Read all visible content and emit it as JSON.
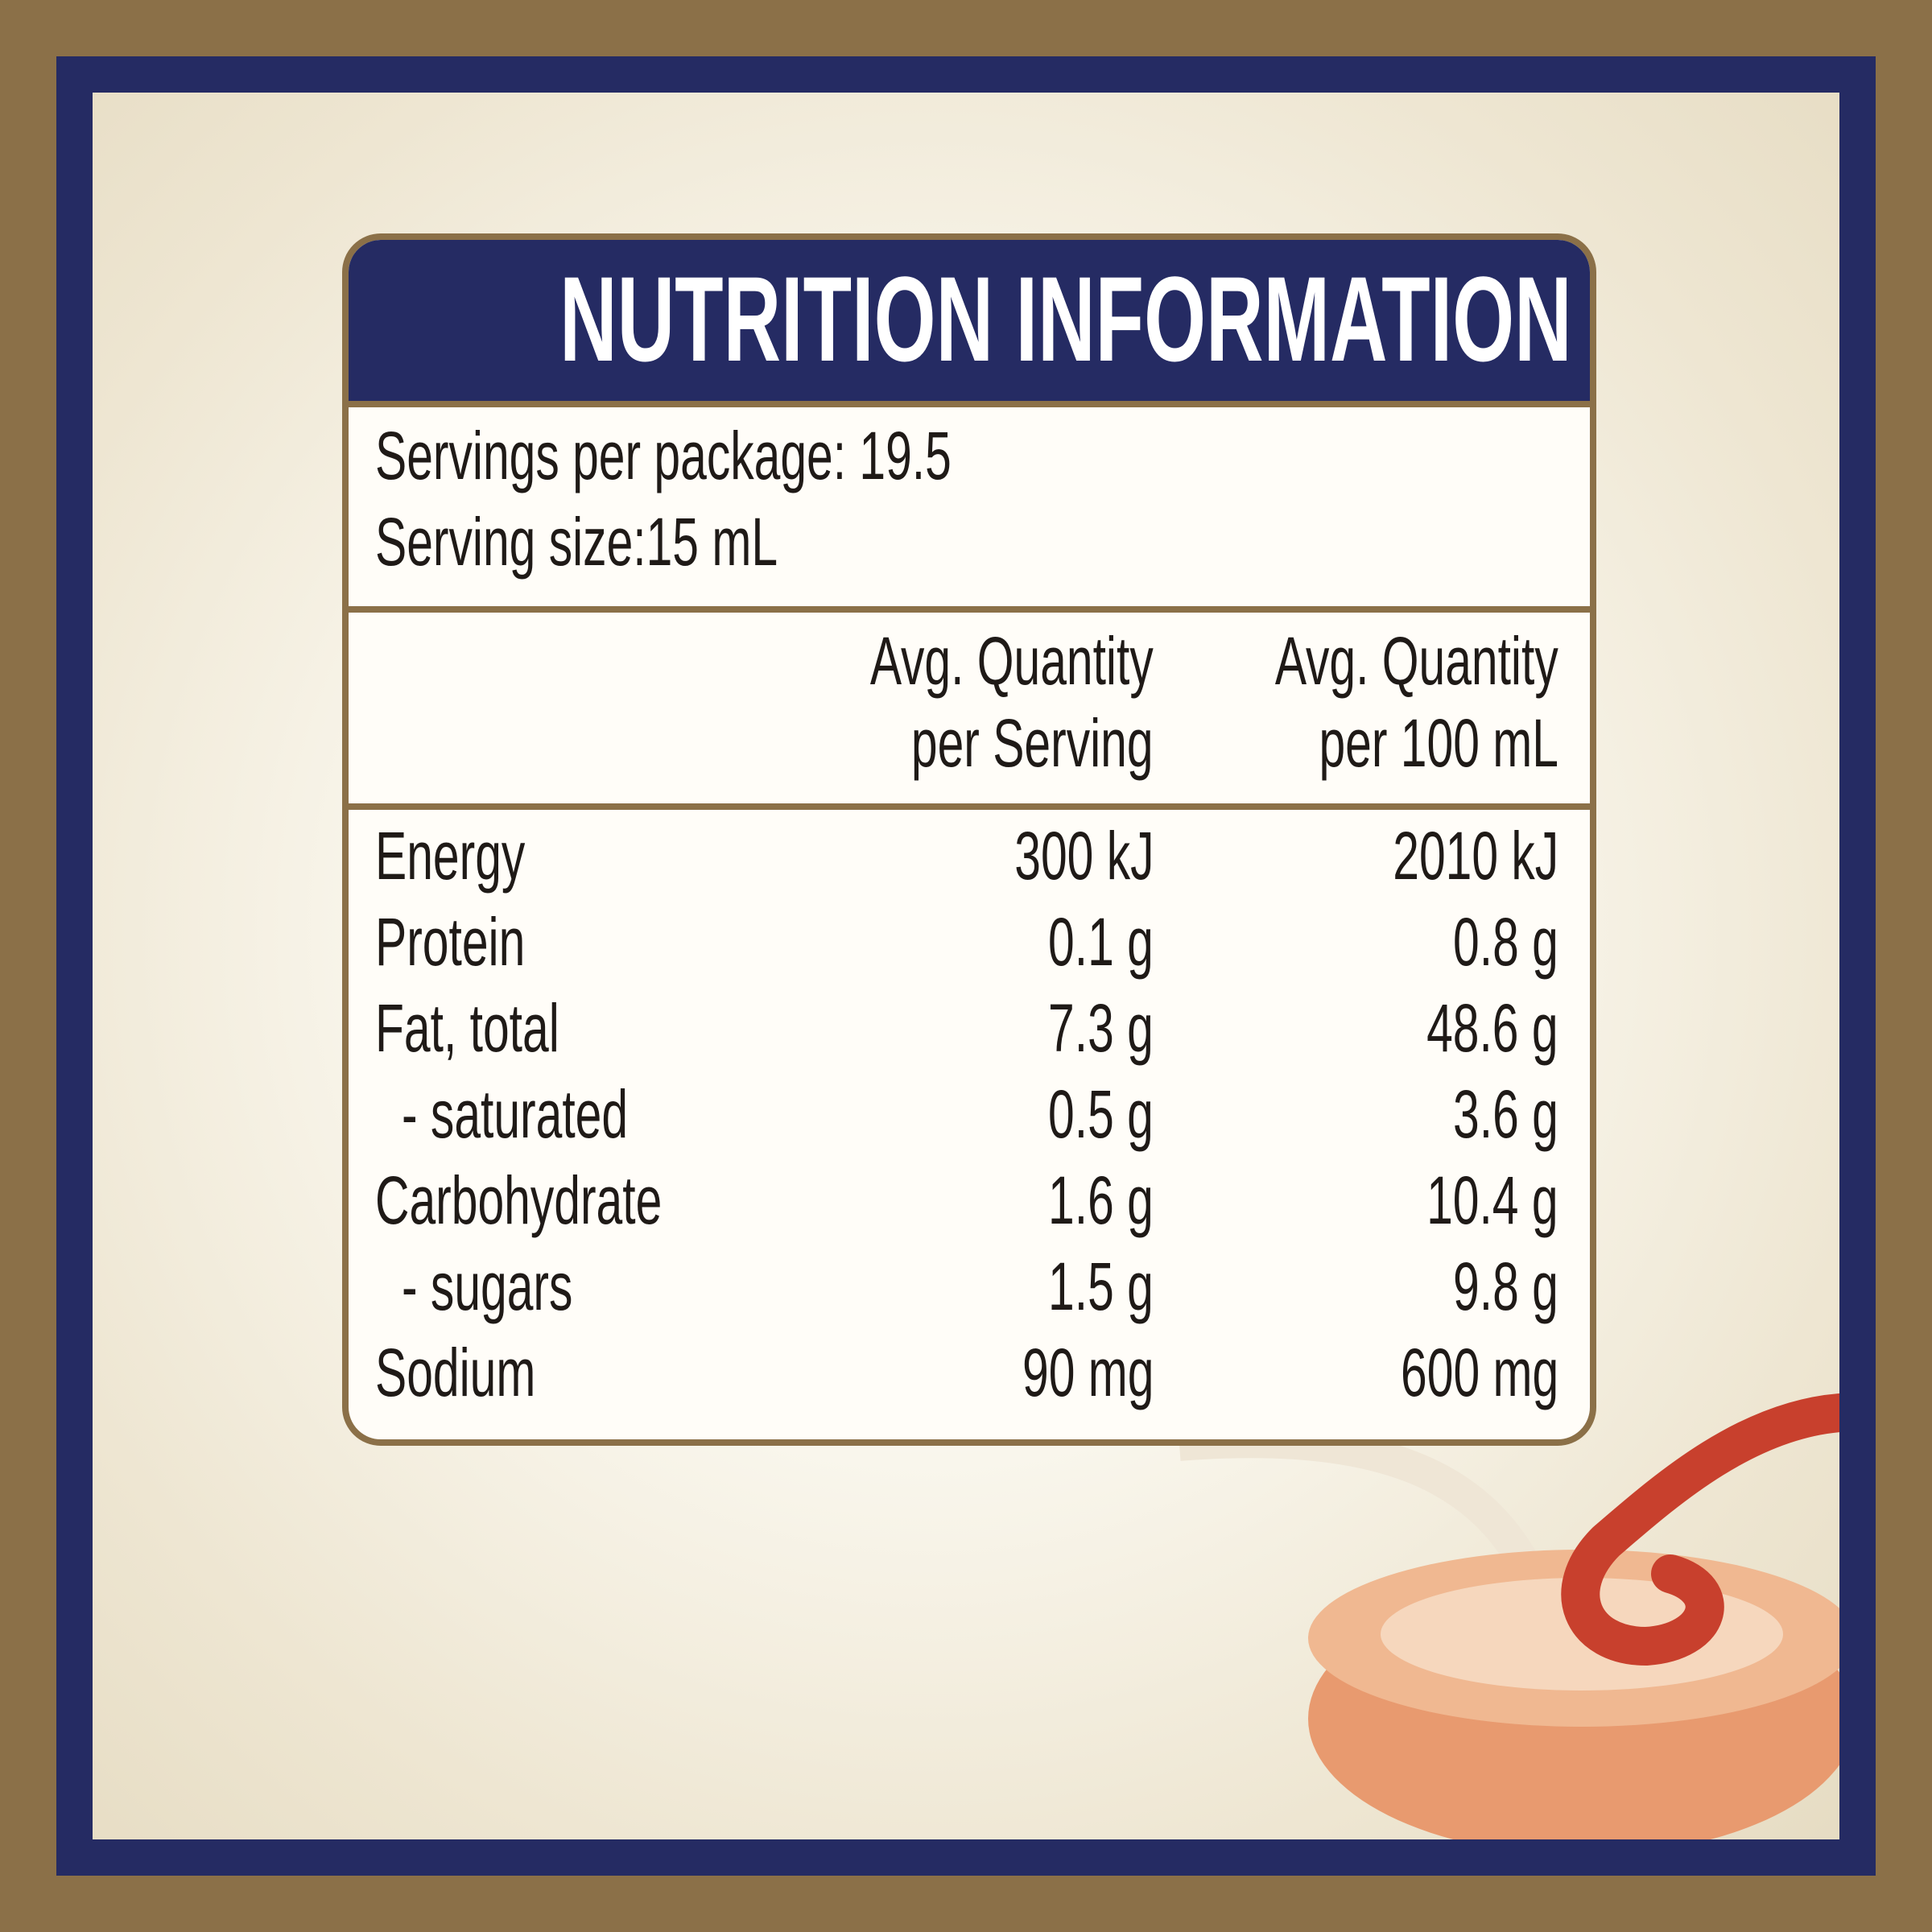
{
  "header": {
    "title": "NUTRITION INFORMATION"
  },
  "servings": {
    "per_package": "Servings per package: 19.5",
    "size": "Serving size:15 mL"
  },
  "table": {
    "columns": [
      [
        "Avg. Quantity",
        "per Serving"
      ],
      [
        "Avg. Quantity",
        "per 100 mL"
      ]
    ],
    "rows": [
      [
        "Energy",
        "300 kJ",
        "2010 kJ"
      ],
      [
        "Protein",
        "0.1 g",
        "0.8 g"
      ],
      [
        "Fat, total",
        "7.3 g",
        "48.6 g"
      ],
      [
        "- saturated",
        "0.5 g",
        "3.6 g"
      ],
      [
        "Carbohydrate",
        "1.6 g",
        "10.4 g"
      ],
      [
        "- sugars",
        "1.5 g",
        "9.8 g"
      ],
      [
        "Sodium",
        "90 mg",
        "600 mg"
      ]
    ]
  }
}
